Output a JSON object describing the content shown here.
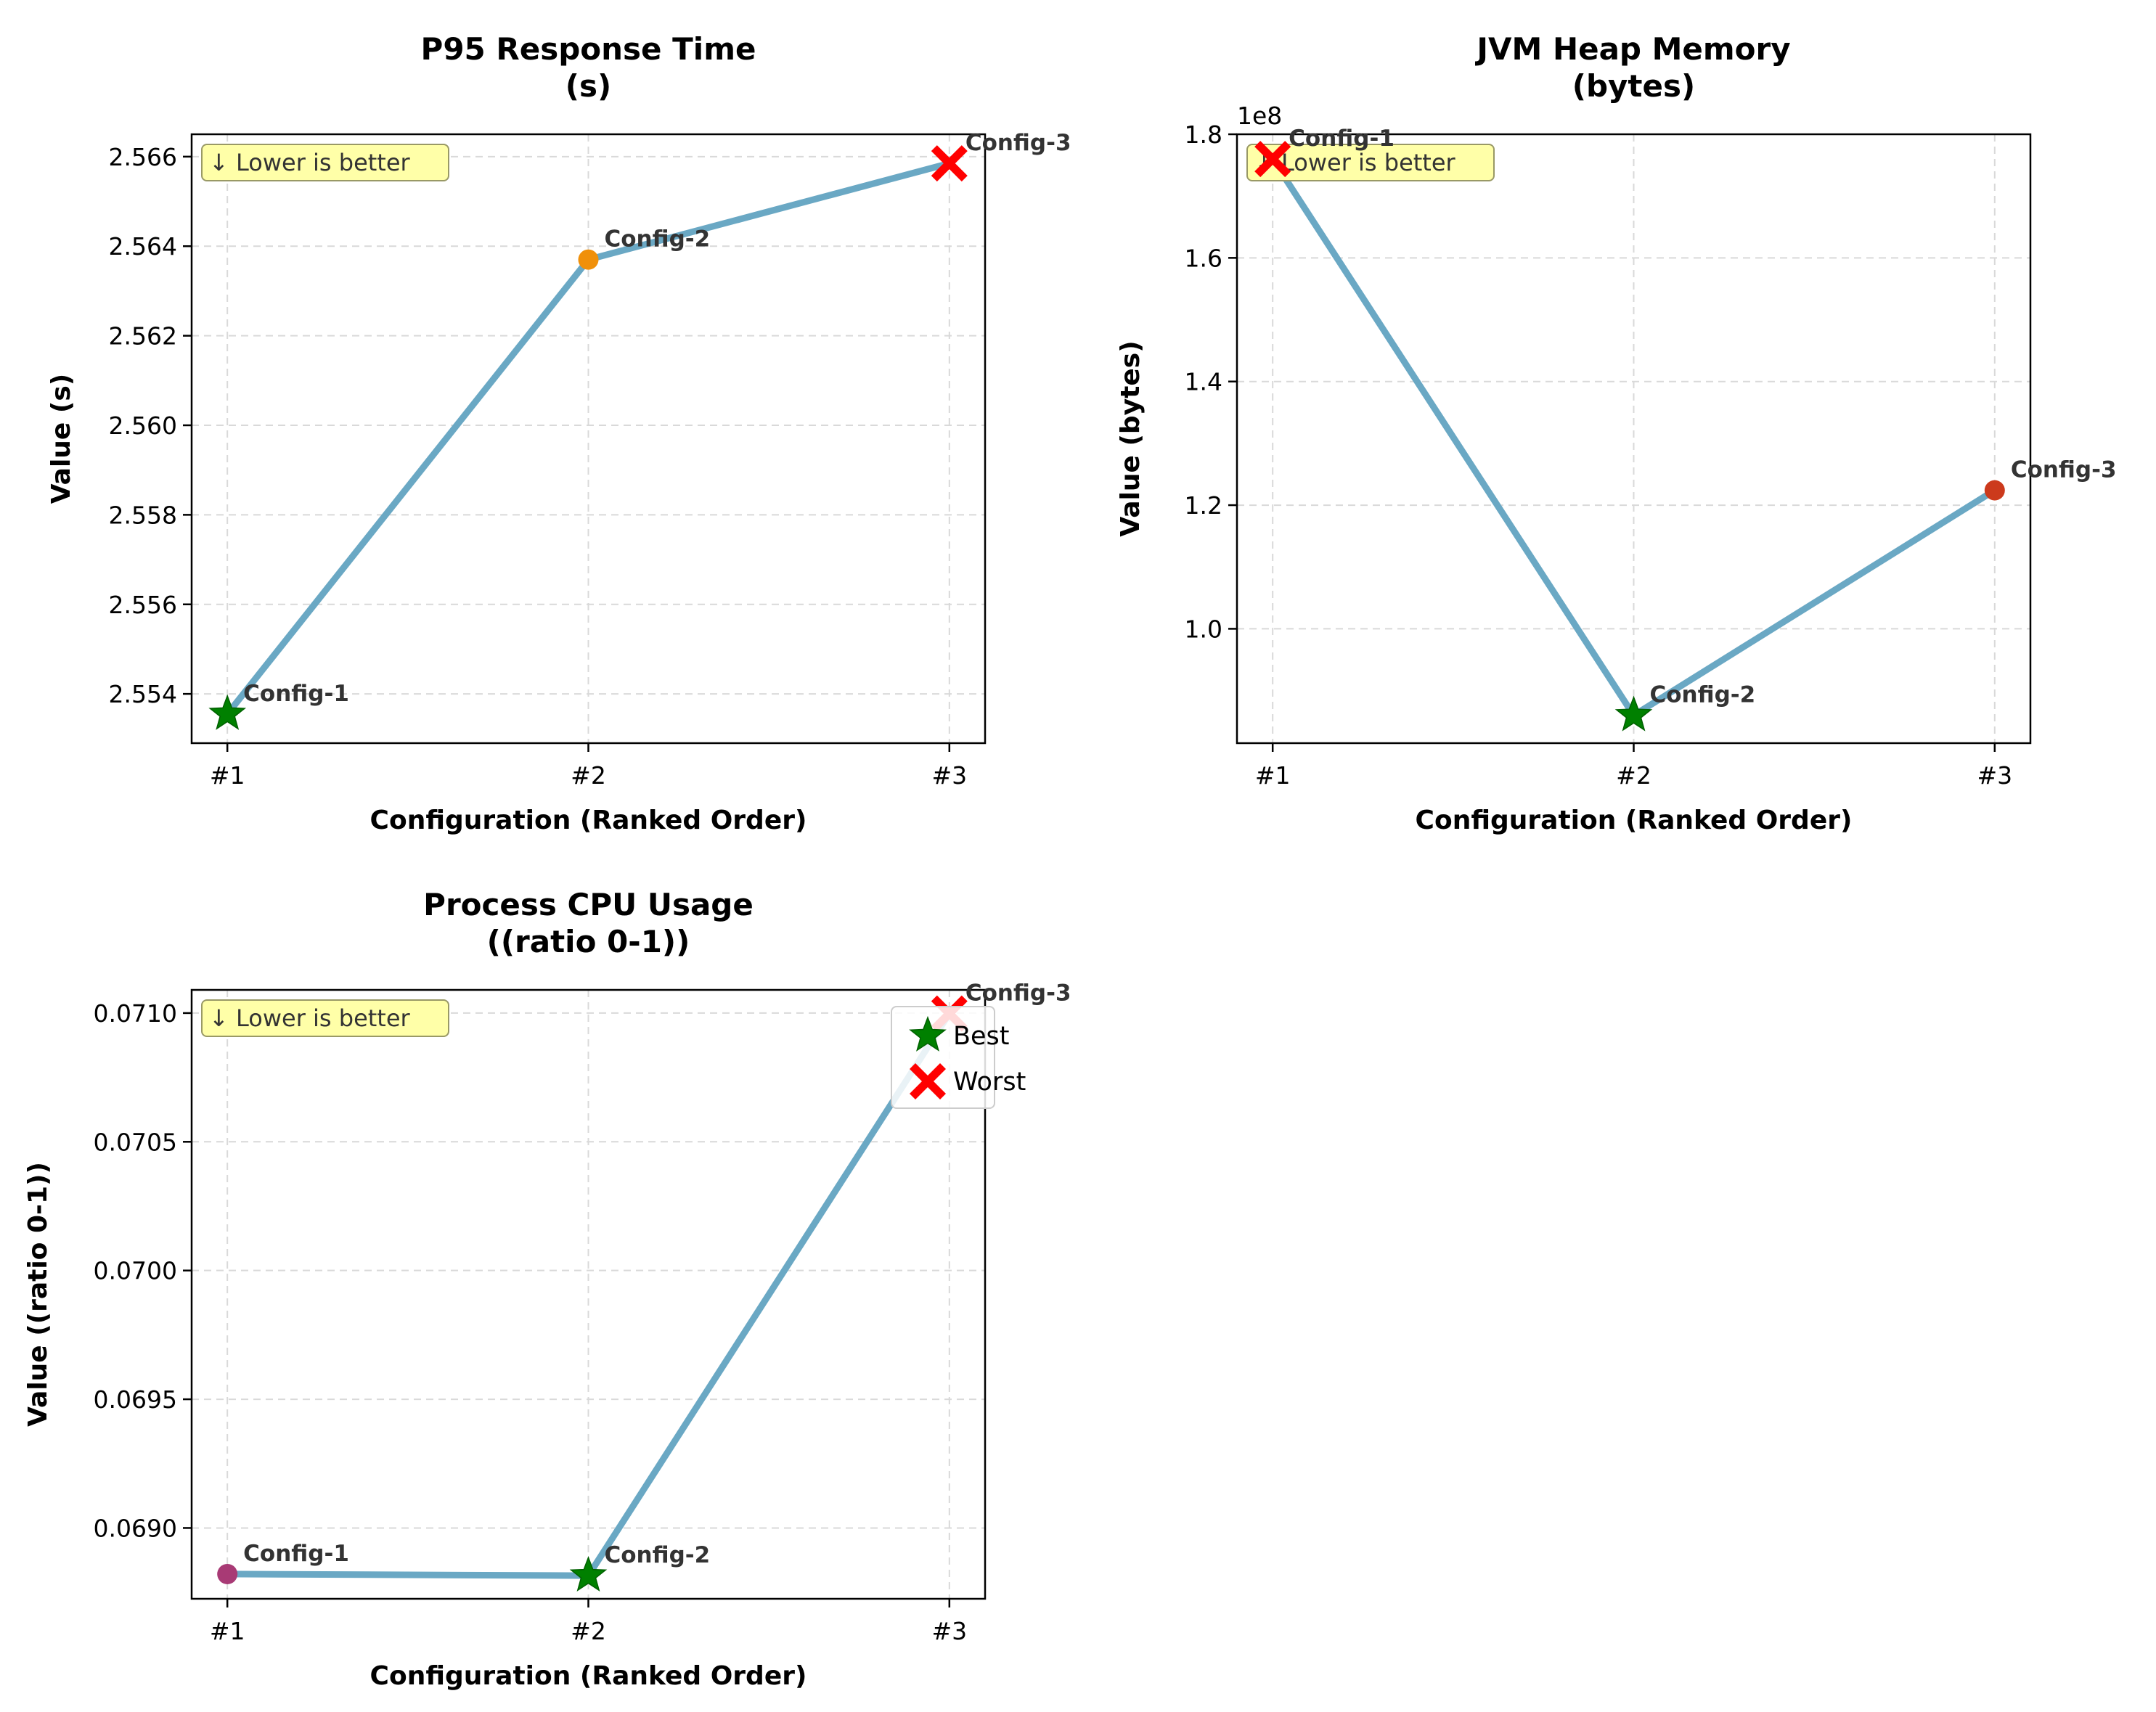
{
  "figure": {
    "background": "#ffffff"
  },
  "colors": {
    "line": "#6aa8c4",
    "best": "#008000",
    "worst": "#ff0000",
    "grid": "#d9d9d9",
    "annotation_bg": "#ffffa8",
    "annotation_border": "#999966",
    "label_text": "#333333",
    "axis": "#000000"
  },
  "chart_data": [
    {
      "type": "line",
      "title_lines": [
        "P95 Response Time",
        "(s)"
      ],
      "xlabel": "Configuration (Ranked Order)",
      "ylabel": "Value (s)",
      "categories": [
        "#1",
        "#2",
        "#3"
      ],
      "point_labels": [
        "Config-1",
        "Config-2",
        "Config-3"
      ],
      "values": [
        2.55355,
        2.5637,
        2.56585
      ],
      "markers": [
        {
          "shape": "star",
          "color": "#008000"
        },
        {
          "shape": "circle",
          "color": "#f0900a"
        },
        {
          "shape": "x",
          "color": "#ff0000"
        }
      ],
      "ylim": [
        2.5529,
        2.5665
      ],
      "yticks": [
        2.554,
        2.556,
        2.558,
        2.56,
        2.562,
        2.564,
        2.566
      ],
      "ytick_labels": [
        "2.554",
        "2.556",
        "2.558",
        "2.560",
        "2.562",
        "2.564",
        "2.566"
      ],
      "annotation": "↓ Lower is better",
      "grid": true,
      "legend": false
    },
    {
      "type": "line",
      "title_lines": [
        "JVM Heap Memory",
        "(bytes)"
      ],
      "xlabel": "Configuration (Ranked Order)",
      "ylabel": "Value (bytes)",
      "offset_text": "1e8",
      "categories": [
        "#1",
        "#2",
        "#3"
      ],
      "point_labels": [
        "Config-1",
        "Config-2",
        "Config-3"
      ],
      "values": [
        176000000,
        86000000,
        122400000
      ],
      "markers": [
        {
          "shape": "x",
          "color": "#ff0000"
        },
        {
          "shape": "star",
          "color": "#008000"
        },
        {
          "shape": "circle",
          "color": "#cc3a1c"
        }
      ],
      "ylim": [
        81500000,
        180000000
      ],
      "yticks": [
        100000000,
        120000000,
        140000000,
        160000000,
        180000000
      ],
      "ytick_labels": [
        "1.0",
        "1.2",
        "1.4",
        "1.6",
        "1.8"
      ],
      "annotation": "↓ Lower is better",
      "grid": true,
      "legend": false
    },
    {
      "type": "line",
      "title_lines": [
        "Process CPU Usage",
        "((ratio 0-1))"
      ],
      "xlabel": "Configuration (Ranked Order)",
      "ylabel": "Value ((ratio 0-1))",
      "categories": [
        "#1",
        "#2",
        "#3"
      ],
      "point_labels": [
        "Config-1",
        "Config-2",
        "Config-3"
      ],
      "values": [
        0.068821,
        0.068815,
        0.070998
      ],
      "markers": [
        {
          "shape": "circle",
          "color": "#a83a75"
        },
        {
          "shape": "star",
          "color": "#008000"
        },
        {
          "shape": "x",
          "color": "#ff0000"
        }
      ],
      "ylim": [
        0.068725,
        0.07109
      ],
      "yticks": [
        0.069,
        0.0695,
        0.07,
        0.0705,
        0.071
      ],
      "ytick_labels": [
        "0.0690",
        "0.0695",
        "0.0700",
        "0.0705",
        "0.0710"
      ],
      "annotation": "↓ Lower is better",
      "grid": true,
      "legend": true,
      "legend_entries": [
        {
          "label": "Best",
          "shape": "star",
          "color": "#008000"
        },
        {
          "label": "Worst",
          "shape": "x",
          "color": "#ff0000"
        }
      ]
    }
  ]
}
